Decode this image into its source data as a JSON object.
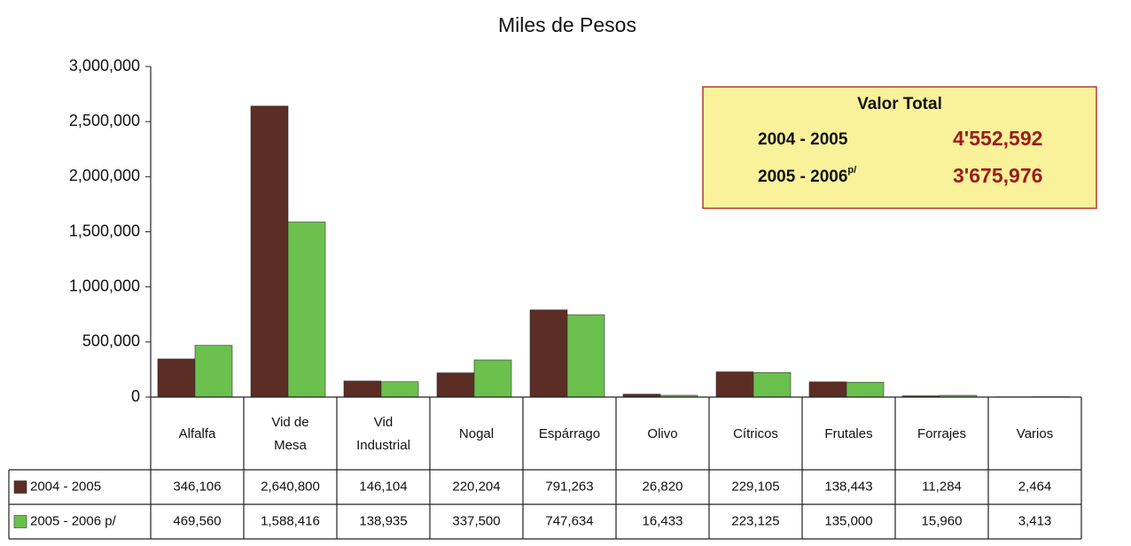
{
  "chart_data": {
    "type": "bar",
    "title": "Miles de Pesos",
    "categories": [
      "Alfalfa",
      "Vid de Mesa",
      "Vid Industrial",
      "Nogal",
      "Espárrago",
      "Olivo",
      "Cítricos",
      "Frutales",
      "Forrajes",
      "Varios"
    ],
    "series": [
      {
        "name": "2004 - 2005",
        "color": "#5b2d24",
        "values": [
          346106,
          2640800,
          146104,
          220204,
          791263,
          26820,
          229105,
          138443,
          11284,
          2464
        ],
        "value_labels": [
          "346,106",
          "2,640,800",
          "146,104",
          "220,204",
          "791,263",
          "26,820",
          "229,105",
          "138,443",
          "11,284",
          "2,464"
        ]
      },
      {
        "name": "2005 - 2006 p/",
        "color": "#6cc04e",
        "values": [
          469560,
          1588416,
          138935,
          337500,
          747634,
          16433,
          223125,
          135000,
          15960,
          3413
        ],
        "value_labels": [
          "469,560",
          "1,588,416",
          "138,935",
          "337,500",
          "747,634",
          "16,433",
          "223,125",
          "135,000",
          "15,960",
          "3,413"
        ]
      }
    ],
    "ylim": [
      0,
      3000000
    ],
    "yticks": [
      0,
      {
        "value": 500000,
        "label": "500,000"
      },
      {
        "value": 1000000,
        "label": "1,000,000"
      },
      {
        "value": 1500000,
        "label": "1,500,000"
      },
      {
        "value": 2000000,
        "label": "2,000,000"
      },
      {
        "value": 2500000,
        "label": "2,500,000"
      },
      {
        "value": 3000000,
        "label": "3,000,000"
      }
    ],
    "annotation": {
      "title": "Valor Total",
      "rows": [
        {
          "label": "2004 - 2005",
          "value": "4'552,592"
        },
        {
          "label": "2005 - 2006",
          "sup": "p/",
          "value": "3'675,976"
        }
      ]
    }
  }
}
